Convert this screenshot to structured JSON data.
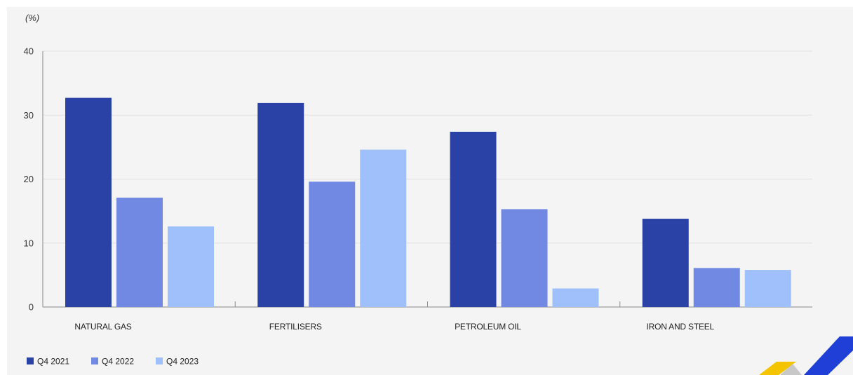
{
  "chart_data": {
    "type": "bar",
    "unit_label": "(%)",
    "categories": [
      "NATURAL GAS",
      "FERTILISERS",
      "PETROLEUM OIL",
      "IRON AND STEEL"
    ],
    "series": [
      {
        "name": "Q4 2021",
        "color": "#2a41a6",
        "values": [
          32.7,
          31.9,
          27.4,
          13.8
        ]
      },
      {
        "name": "Q4 2022",
        "color": "#7289e3",
        "values": [
          17.1,
          19.6,
          15.3,
          6.1
        ]
      },
      {
        "name": "Q4 2023",
        "color": "#9fc0fa",
        "values": [
          12.6,
          24.6,
          2.9,
          5.8
        ]
      }
    ],
    "ylim": [
      0,
      40
    ],
    "yticks": [
      0,
      10,
      20,
      30,
      40
    ],
    "grid": true,
    "legend_position": "bottom-left",
    "xlabel": "",
    "ylabel": ""
  },
  "logo": {
    "colors": [
      "#f5c400",
      "#1f3fd6",
      "#c8c8c8"
    ]
  }
}
